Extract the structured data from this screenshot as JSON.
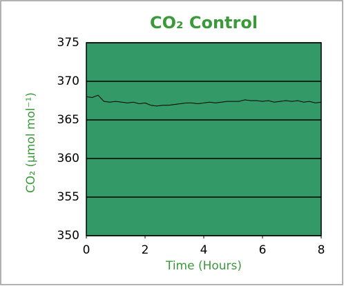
{
  "chart_data": {
    "type": "line",
    "title": "CO₂ Control",
    "xlabel": "Time (Hours)",
    "ylabel": "CO₂ (µmol mol⁻¹)",
    "x": [
      0,
      0.2,
      0.4,
      0.6,
      0.8,
      1.0,
      1.2,
      1.4,
      1.6,
      1.8,
      2.0,
      2.2,
      2.4,
      2.6,
      2.8,
      3.0,
      3.2,
      3.4,
      3.6,
      3.8,
      4.0,
      4.2,
      4.4,
      4.6,
      4.8,
      5.0,
      5.2,
      5.4,
      5.6,
      5.8,
      6.0,
      6.2,
      6.4,
      6.6,
      6.8,
      7.0,
      7.2,
      7.4,
      7.6,
      7.8,
      8.0
    ],
    "series": [
      {
        "color": "#000000",
        "values": [
          368.0,
          367.9,
          368.2,
          367.4,
          367.3,
          367.4,
          367.3,
          367.2,
          367.3,
          367.1,
          367.2,
          366.9,
          366.8,
          366.9,
          366.9,
          367.0,
          367.1,
          367.2,
          367.2,
          367.1,
          367.2,
          367.3,
          367.2,
          367.3,
          367.4,
          367.4,
          367.4,
          367.6,
          367.5,
          367.5,
          367.4,
          367.5,
          367.3,
          367.4,
          367.5,
          367.4,
          367.5,
          367.3,
          367.4,
          367.2,
          367.3
        ]
      }
    ],
    "xlim": [
      0,
      8
    ],
    "xticks": [
      0,
      2,
      4,
      6,
      8
    ],
    "ylim": [
      350,
      375
    ],
    "yticks": [
      350,
      355,
      360,
      365,
      370,
      375
    ],
    "grid": true,
    "plot_background": "#339966"
  }
}
